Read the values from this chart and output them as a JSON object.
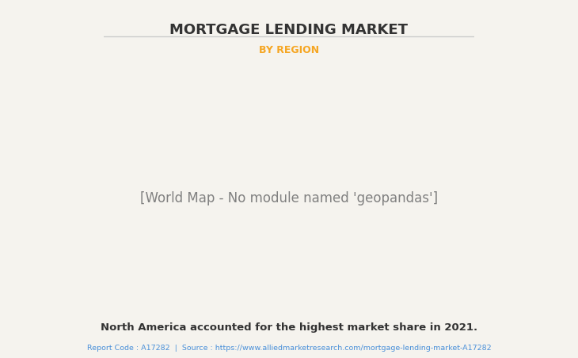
{
  "title": "MORTGAGE LENDING MARKET",
  "subtitle": "BY REGION",
  "subtitle_color": "#F5A623",
  "title_color": "#333333",
  "background_color": "#F5F3EE",
  "map_land_color": "#8DC07C",
  "map_highlight_color": "#FFFFFF",
  "map_border_color": "#7AB5D4",
  "map_shadow_color": "#888888",
  "bottom_text": "North America accounted for the highest market share in 2021.",
  "bottom_text_color": "#333333",
  "source_text": "Report Code : A17282  |  Source : https://www.alliedmarketresearch.com/mortgage-lending-market-A17282",
  "source_color": "#4A90D9",
  "divider_color": "#CCCCCC",
  "figsize": [
    7.3,
    4.53
  ],
  "dpi": 100
}
